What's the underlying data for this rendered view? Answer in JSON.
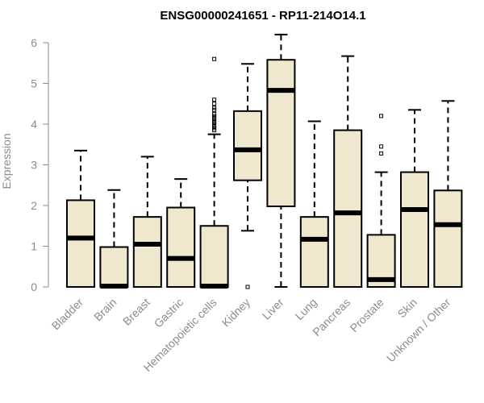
{
  "colors": {
    "box_fill": "#efe8cf",
    "stroke": "#000000",
    "axis": "#8c8c8c"
  },
  "chart_data": {
    "type": "box",
    "title": "ENSG00000241651 - RP11-214O14.1",
    "ylabel": "Expression",
    "xlabel": "",
    "ylim": [
      0,
      6.2
    ],
    "yticks": [
      0,
      1,
      2,
      3,
      4,
      5,
      6
    ],
    "grid": false,
    "categories": [
      "Bladder",
      "Brain",
      "Breast",
      "Gastric",
      "Hematopoietic cells",
      "Kidney",
      "Liver",
      "Lung",
      "Pancreas",
      "Prostate",
      "Skin",
      "Unknown / Other"
    ],
    "boxes": [
      {
        "category": "Bladder",
        "whisker_low": 0,
        "q1": 0,
        "median": 1.2,
        "q3": 2.13,
        "whisker_high": 3.35,
        "outliers": []
      },
      {
        "category": "Brain",
        "whisker_low": 0,
        "q1": 0,
        "median": 0.02,
        "q3": 0.98,
        "whisker_high": 2.38,
        "outliers": []
      },
      {
        "category": "Breast",
        "whisker_low": 0,
        "q1": 0,
        "median": 1.05,
        "q3": 1.72,
        "whisker_high": 3.2,
        "outliers": []
      },
      {
        "category": "Gastric",
        "whisker_low": 0,
        "q1": 0,
        "median": 0.7,
        "q3": 1.95,
        "whisker_high": 2.65,
        "outliers": []
      },
      {
        "category": "Hematopoietic cells",
        "whisker_low": 0,
        "q1": 0,
        "median": 0.02,
        "q3": 1.5,
        "whisker_high": 3.75,
        "outliers": [
          3.85,
          3.9,
          3.95,
          4.0,
          4.05,
          4.1,
          4.15,
          4.2,
          4.25,
          4.35,
          4.4,
          4.5,
          4.6,
          5.6
        ]
      },
      {
        "category": "Kidney",
        "whisker_low": 1.38,
        "q1": 2.62,
        "median": 3.37,
        "q3": 4.32,
        "whisker_high": 5.48,
        "outliers": [
          0
        ]
      },
      {
        "category": "Liver",
        "whisker_low": 0,
        "q1": 1.98,
        "median": 4.83,
        "q3": 5.58,
        "whisker_high": 6.2,
        "outliers": []
      },
      {
        "category": "Lung",
        "whisker_low": 0,
        "q1": 0,
        "median": 1.17,
        "q3": 1.72,
        "whisker_high": 4.07,
        "outliers": []
      },
      {
        "category": "Pancreas",
        "whisker_low": 0,
        "q1": 0,
        "median": 1.82,
        "q3": 3.85,
        "whisker_high": 5.67,
        "outliers": []
      },
      {
        "category": "Prostate",
        "whisker_low": 0,
        "q1": 0,
        "median": 0.18,
        "q3": 1.28,
        "whisker_high": 2.82,
        "outliers": [
          3.28,
          3.45,
          4.2
        ]
      },
      {
        "category": "Skin",
        "whisker_low": 0,
        "q1": 0,
        "median": 1.9,
        "q3": 2.82,
        "whisker_high": 4.35,
        "outliers": []
      },
      {
        "category": "Unknown / Other",
        "whisker_low": 0,
        "q1": 0,
        "median": 1.53,
        "q3": 2.37,
        "whisker_high": 4.57,
        "outliers": []
      }
    ]
  }
}
